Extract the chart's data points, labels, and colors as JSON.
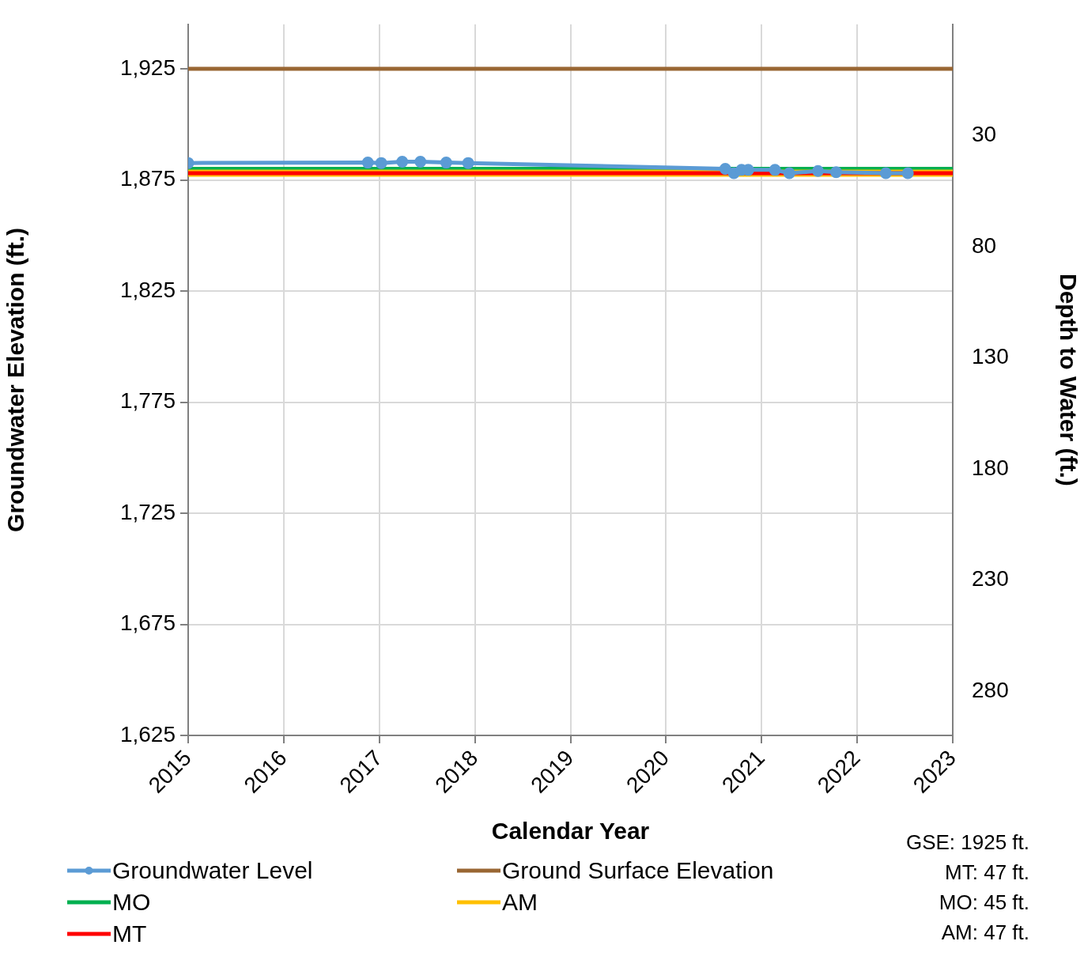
{
  "chart_data": {
    "type": "line",
    "xlabel": "Calendar Year",
    "ylabel": "Groundwater Elevation (ft.)",
    "y2label": "Depth to Water (ft.)",
    "xlim": [
      2015,
      2023
    ],
    "xticks": [
      2015,
      2016,
      2017,
      2018,
      2019,
      2020,
      2021,
      2022,
      2023
    ],
    "ylim": [
      1625,
      1945
    ],
    "yticks": [
      {
        "value": 1625,
        "label": "1,625"
      },
      {
        "value": 1675,
        "label": "1,675"
      },
      {
        "value": 1725,
        "label": "1,725"
      },
      {
        "value": 1775,
        "label": "1,775"
      },
      {
        "value": 1825,
        "label": "1,825"
      },
      {
        "value": 1875,
        "label": "1,875"
      },
      {
        "value": 1925,
        "label": "1,925"
      }
    ],
    "y2lim": [
      300,
      -20
    ],
    "y2ticks": [
      30,
      80,
      130,
      180,
      230,
      280
    ],
    "grid": true,
    "legend": "bottom",
    "line_style": "solid",
    "series": [
      {
        "name": "Groundwater Level",
        "color": "#5b9bd5",
        "marker": "circle",
        "x": [
          2015.0,
          2016.88,
          2017.02,
          2017.24,
          2017.43,
          2017.7,
          2017.93,
          2020.62,
          2020.71,
          2020.79,
          2020.86,
          2021.14,
          2021.29,
          2021.59,
          2021.78,
          2022.3,
          2022.53
        ],
        "values": [
          1882.6,
          1882.8,
          1882.6,
          1883.2,
          1883.2,
          1882.8,
          1882.6,
          1880,
          1878,
          1879.5,
          1879.5,
          1879.5,
          1878,
          1879,
          1878.5,
          1878,
          1878
        ]
      },
      {
        "name": "Ground Surface Elevation",
        "color": "#996633",
        "marker": "none",
        "x": [
          2015,
          2023
        ],
        "values": [
          1925,
          1925
        ]
      },
      {
        "name": "MO",
        "color": "#00b050",
        "marker": "none",
        "x": [
          2015,
          2023
        ],
        "values": [
          1880,
          1880
        ]
      },
      {
        "name": "AM",
        "color": "#ffc000",
        "marker": "none",
        "x": [
          2015,
          2023
        ],
        "values": [
          1878,
          1878
        ]
      },
      {
        "name": "MT",
        "color": "#ff0000",
        "marker": "none",
        "x": [
          2015,
          2023
        ],
        "values": [
          1878,
          1878
        ]
      }
    ],
    "annotations": [
      "GSE: 1925 ft.",
      "MT: 47 ft.",
      "MO: 45 ft.",
      "AM: 47 ft."
    ]
  }
}
